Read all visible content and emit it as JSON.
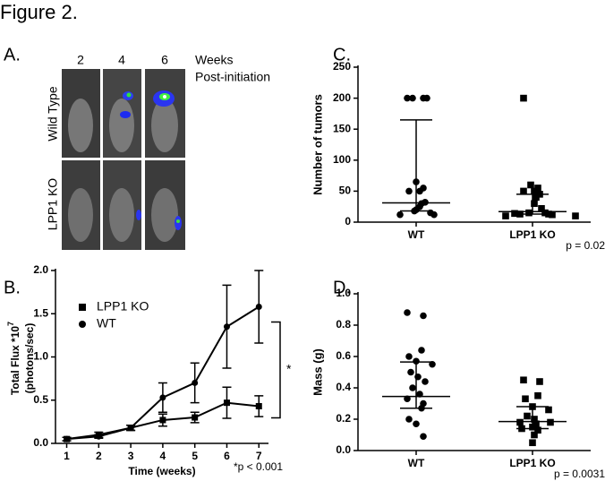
{
  "figure_title": "Figure 2.",
  "panel_a": {
    "label": "A.",
    "columns": [
      "2",
      "4",
      "6"
    ],
    "header_line1": "Weeks",
    "header_line2": "Post-initiation",
    "rows": [
      "Wild Type",
      "LPP1 KO"
    ]
  },
  "chart_data": [
    {
      "type": "line",
      "panel": "B.",
      "ylabel": "Total Flux *10",
      "ylabel_superscript": "7",
      "ylabel_line2": "(photons/sec)",
      "xlabel": "Time (weeks)",
      "x": [
        1,
        2,
        3,
        4,
        5,
        6,
        7
      ],
      "series": [
        {
          "name": "LPP1 KO",
          "color": "#000000",
          "marker": "square",
          "values": [
            0.05,
            0.1,
            0.18,
            0.27,
            0.3,
            0.47,
            0.43
          ],
          "errors": [
            0.02,
            0.03,
            0.03,
            0.07,
            0.06,
            0.18,
            0.12
          ]
        },
        {
          "name": "WT",
          "color": "#000000",
          "marker": "circle",
          "values": [
            0.05,
            0.08,
            0.18,
            0.53,
            0.7,
            1.35,
            1.58
          ],
          "errors": [
            0.02,
            0.02,
            0.03,
            0.17,
            0.23,
            0.48,
            0.42
          ]
        }
      ],
      "xlim": [
        0.65,
        7.3
      ],
      "xticks": [
        1,
        2,
        3,
        4,
        5,
        6,
        7
      ],
      "ylim": [
        0,
        2.0
      ],
      "yticks": [
        {
          "value": 0,
          "label": "0.0"
        },
        0.5,
        {
          "value": 1,
          "label": "1.0"
        },
        1.5,
        {
          "value": 2,
          "label": "2.0"
        }
      ],
      "significance_marker": "*",
      "footnote": "*p < 0.001",
      "legend": "upper-left"
    },
    {
      "type": "dotplot",
      "panel": "C.",
      "ylabel": "Number of tumors",
      "categories": [
        "WT",
        "LPP1 KO"
      ],
      "markers": [
        "circle",
        "square"
      ],
      "color": "#000000",
      "values": [
        [
          200,
          200,
          200,
          200,
          65,
          55,
          50,
          50,
          32,
          30,
          25,
          20,
          18,
          15,
          12,
          12
        ],
        [
          200,
          60,
          55,
          50,
          50,
          45,
          40,
          30,
          22,
          15,
          15,
          14,
          13,
          13,
          12,
          10,
          10
        ]
      ],
      "median": [
        31,
        17
      ],
      "lower": [
        18,
        13
      ],
      "upper": [
        165,
        45
      ],
      "ylim": [
        0,
        250
      ],
      "yticks": [
        0,
        50,
        100,
        150,
        200,
        250
      ],
      "footnote": "p = 0.02"
    },
    {
      "type": "dotplot",
      "panel": "D.",
      "ylabel": "Mass (g)",
      "categories": [
        "WT",
        "LPP1 KO"
      ],
      "markers": [
        "circle",
        "square"
      ],
      "color": "#000000",
      "values": [
        [
          0.88,
          0.86,
          0.64,
          0.6,
          0.57,
          0.55,
          0.5,
          0.47,
          0.44,
          0.4,
          0.36,
          0.33,
          0.3,
          0.27,
          0.2,
          0.17,
          0.09
        ],
        [
          0.45,
          0.44,
          0.35,
          0.33,
          0.28,
          0.26,
          0.22,
          0.2,
          0.18,
          0.18,
          0.17,
          0.15,
          0.14,
          0.13,
          0.1,
          0.05
        ]
      ],
      "median": [
        0.345,
        0.185
      ],
      "lower": [
        0.27,
        0.14
      ],
      "upper": [
        0.565,
        0.28
      ],
      "ylim": [
        0,
        1.0
      ],
      "yticks": [
        {
          "value": 0,
          "label": "0.0"
        },
        0.2,
        0.4,
        0.6,
        0.8,
        {
          "value": 1,
          "label": "1.0"
        }
      ],
      "footnote": "p = 0.0031"
    }
  ]
}
